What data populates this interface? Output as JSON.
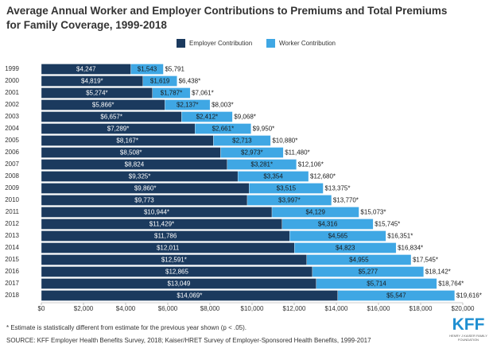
{
  "chart_data": {
    "type": "stacked-barh",
    "title": "Average Annual Worker and Employer Contributions to Premiums and Total Premiums for Family Coverage, 1999-2018",
    "categories": [
      "1999",
      "2000",
      "2001",
      "2002",
      "2003",
      "2004",
      "2005",
      "2006",
      "2007",
      "2008",
      "2009",
      "2010",
      "2011",
      "2012",
      "2013",
      "2014",
      "2015",
      "2016",
      "2017",
      "2018"
    ],
    "series": [
      {
        "name": "Employer Contribution",
        "color": "#1b3a5e",
        "label_color": "#ffffff",
        "values": [
          4247,
          4819,
          5274,
          5866,
          6657,
          7289,
          8167,
          8508,
          8824,
          9325,
          9860,
          9773,
          10944,
          11429,
          11786,
          12011,
          12591,
          12865,
          13049,
          14069
        ],
        "value_labels": [
          "$4,247",
          "$4,819*",
          "$5,274*",
          "$5,866*",
          "$6,657*",
          "$7,289*",
          "$8,167*",
          "$8,508*",
          "$8,824",
          "$9,325*",
          "$9,860*",
          "$9,773",
          "$10,944*",
          "$11,429*",
          "$11,786",
          "$12,011",
          "$12,591*",
          "$12,865",
          "$13,049",
          "$14,069*"
        ]
      },
      {
        "name": "Worker Contribution",
        "color": "#3fa7e4",
        "label_color": "#1a1a1a",
        "values": [
          1543,
          1619,
          1787,
          2137,
          2412,
          2661,
          2713,
          2973,
          3281,
          3354,
          3515,
          3997,
          4129,
          4316,
          4565,
          4823,
          4955,
          5277,
          5714,
          5547
        ],
        "value_labels": [
          "$1,543",
          "$1,619",
          "$1,787*",
          "$2,137*",
          "$2,412*",
          "$2,661*",
          "$2,713",
          "$2,973*",
          "$3,281*",
          "$3,354",
          "$3,515",
          "$3,997*",
          "$4,129",
          "$4,316",
          "$4,565",
          "$4,823",
          "$4,955",
          "$5,277",
          "$5,714",
          "$5,547"
        ]
      }
    ],
    "totals": [
      5791,
      6438,
      7061,
      8003,
      9068,
      9950,
      10880,
      11480,
      12106,
      12680,
      13375,
      13770,
      15073,
      15745,
      16351,
      16834,
      17545,
      18142,
      18764,
      19616
    ],
    "total_labels": [
      "$5,791",
      "$6,438*",
      "$7,061*",
      "$8,003*",
      "$9,068*",
      "$9,950*",
      "$10,880*",
      "$11,480*",
      "$12,106*",
      "$12,680*",
      "$13,375*",
      "$13,770*",
      "$15,073*",
      "$15,745*",
      "$16,351*",
      "$16,834*",
      "$17,545*",
      "$18,142*",
      "$18,764*",
      "$19,616*"
    ],
    "xlim": [
      0,
      20000
    ],
    "xticks": [
      {
        "value": 0,
        "label": "$0"
      },
      {
        "value": 2000,
        "label": "$2,000"
      },
      {
        "value": 4000,
        "label": "$4,000"
      },
      {
        "value": 6000,
        "label": "$6,000"
      },
      {
        "value": 8000,
        "label": "$8,000"
      },
      {
        "value": 10000,
        "label": "$10,000"
      },
      {
        "value": 12000,
        "label": "$12,000"
      },
      {
        "value": 14000,
        "label": "$14,000"
      },
      {
        "value": 16000,
        "label": "$16,000"
      },
      {
        "value": 18000,
        "label": "$18,000"
      },
      {
        "value": 20000,
        "label": "$20,000"
      }
    ],
    "grid": false,
    "legend": "top",
    "footnote": "* Estimate is statistically different from estimate for the previous year shown (p < .05).",
    "source": "SOURCE: KFF Employer Health Benefits Survey, 2018; Kaiser/HRET Survey of Employer-Sponsored Health Benefits, 1999-2017",
    "logo": {
      "main": "KFF",
      "sub": "HENRY J KAISER FAMILY FOUNDATION"
    }
  }
}
